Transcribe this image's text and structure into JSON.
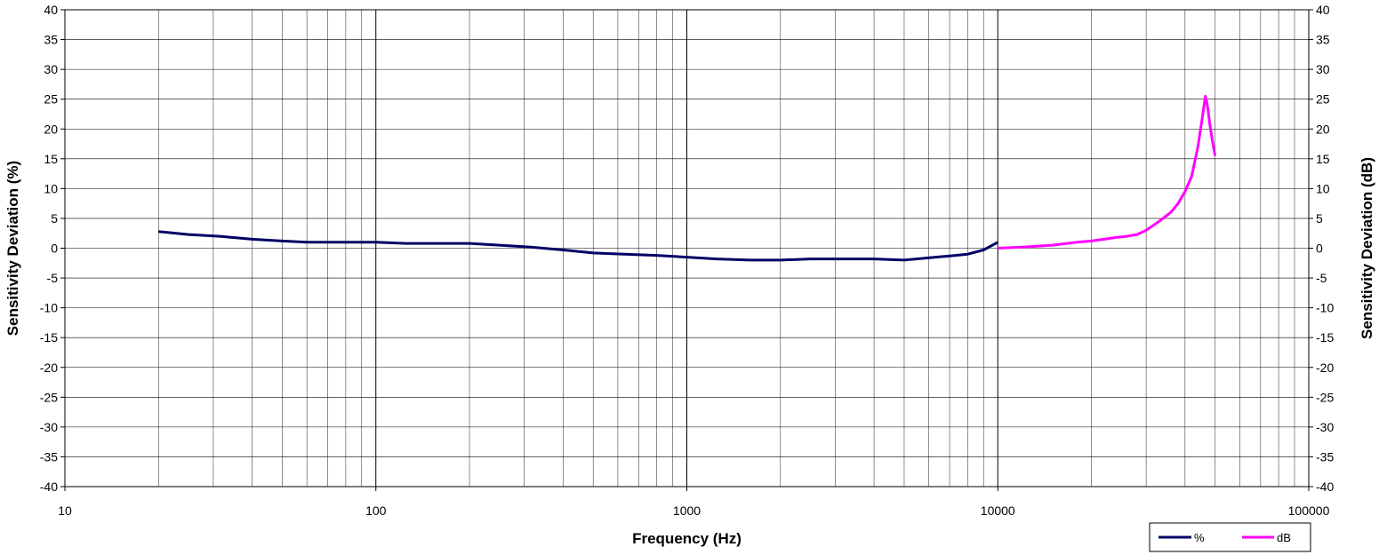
{
  "chart_data": {
    "type": "line",
    "xlabel": "Frequency (Hz)",
    "ylabel_left": "Sensitivity Deviation (%)",
    "ylabel_right": "Sensitivity Deviation (dB)",
    "x_scale": "log",
    "xlim": [
      10,
      100000
    ],
    "ylim": [
      -40,
      40
    ],
    "ylim_right": [
      -40,
      40
    ],
    "x_ticks": [
      "10",
      "100",
      "1000",
      "10000",
      "100000"
    ],
    "y_ticks": [
      "40",
      "35",
      "30",
      "25",
      "20",
      "15",
      "10",
      "5",
      "0",
      "-5",
      "-10",
      "-15",
      "-20",
      "-25",
      "-30",
      "-35",
      "-40"
    ],
    "grid": true,
    "legend_position": "bottom-right",
    "series": [
      {
        "name": "%",
        "color": "#000066",
        "axis": "left",
        "x": [
          20,
          25,
          31.5,
          40,
          50,
          60,
          70,
          80,
          100,
          125,
          160,
          200,
          250,
          315,
          400,
          500,
          630,
          800,
          1000,
          1250,
          1600,
          2000,
          2500,
          3150,
          4000,
          5000,
          6300,
          7000,
          8000,
          9000,
          10000
        ],
        "y": [
          2.8,
          2.3,
          2.0,
          1.5,
          1.2,
          1.0,
          1.0,
          1.0,
          1.0,
          0.8,
          0.8,
          0.8,
          0.5,
          0.2,
          -0.3,
          -0.8,
          -1.0,
          -1.2,
          -1.5,
          -1.8,
          -2.0,
          -2.0,
          -1.8,
          -1.8,
          -1.8,
          -2.0,
          -1.5,
          -1.3,
          -1.0,
          -0.3,
          1.0
        ]
      },
      {
        "name": "dB",
        "color": "#ff00ff",
        "axis": "right",
        "x": [
          10000,
          12000,
          15000,
          18000,
          20000,
          22000,
          24000,
          26000,
          28000,
          30000,
          33000,
          36000,
          38000,
          40000,
          42000,
          44000,
          45500,
          46500,
          47000,
          47500,
          48000,
          49000,
          50000
        ],
        "y": [
          0.0,
          0.2,
          0.5,
          1.0,
          1.2,
          1.5,
          1.8,
          2.0,
          2.3,
          3.0,
          4.5,
          6.0,
          7.5,
          9.5,
          12.0,
          17.0,
          22.0,
          25.5,
          24.5,
          23.0,
          21.0,
          18.0,
          15.5
        ]
      }
    ]
  }
}
